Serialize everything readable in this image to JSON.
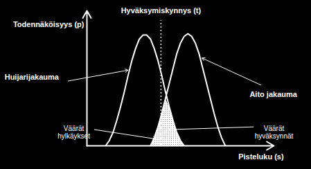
{
  "chart_data": {
    "type": "line",
    "x_label": "Pisteluku (s)",
    "y_label": "Todennäköisyys (p)",
    "x": [
      10,
      12,
      14,
      16,
      18,
      20,
      22,
      24,
      26,
      28,
      30,
      32,
      34,
      36,
      38,
      40,
      42,
      44,
      46,
      48,
      50,
      52,
      54,
      56,
      58,
      60,
      62,
      64,
      66,
      68,
      70,
      72,
      74
    ],
    "series": [
      {
        "name": "Huijarijakauma",
        "color": "#ffffff",
        "values": [
          0,
          4,
          10,
          19,
          29,
          40,
          52,
          63,
          72,
          79,
          82,
          82,
          79,
          72,
          63,
          52,
          40,
          29,
          19,
          10,
          4,
          0,
          null,
          null,
          null,
          null,
          null,
          null,
          null,
          null,
          null,
          null,
          null
        ]
      },
      {
        "name": "Aito jakauma",
        "color": "#ffffff",
        "values": [
          null,
          null,
          null,
          null,
          null,
          null,
          null,
          null,
          null,
          null,
          null,
          null,
          0,
          6,
          14,
          24,
          35,
          46,
          57,
          68,
          76,
          81,
          83,
          81,
          76,
          68,
          57,
          46,
          35,
          24,
          14,
          6,
          0
        ]
      }
    ],
    "xlim": [
      0,
      100
    ],
    "ylim": [
      0,
      100
    ],
    "xticks": [],
    "yticks": [],
    "tick_labels": false,
    "threshold": {
      "label": "Hyväksymiskynnys (t)",
      "value": 39.6,
      "line_style": "dotted"
    },
    "annotations": [
      "Väärät hylkäykset",
      "Väärät hyväksynnät"
    ]
  }
}
